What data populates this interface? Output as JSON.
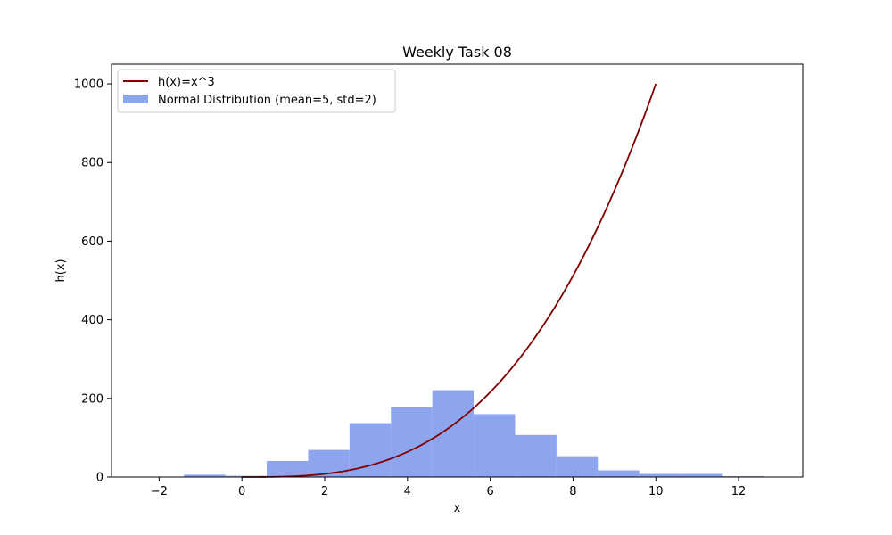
{
  "chart_data": {
    "type": "bar",
    "title": "Weekly Task 08",
    "xlabel": "x",
    "ylabel": "h(x)",
    "xlim": [
      -3.15,
      13.55
    ],
    "ylim": [
      0,
      1050
    ],
    "xticks": [
      -2,
      0,
      2,
      4,
      6,
      8,
      10,
      12
    ],
    "yticks": [
      0,
      200,
      400,
      600,
      800,
      1000
    ],
    "xtick_labels": [
      "−2",
      "0",
      "2",
      "4",
      "6",
      "8",
      "10",
      "12"
    ],
    "ytick_labels": [
      "0",
      "200",
      "400",
      "600",
      "800",
      "1000"
    ],
    "grid": false,
    "legend_position": "top-left",
    "series": [
      {
        "name": "h(x)=x^3",
        "type": "line",
        "color": "#800000",
        "function": "x^3",
        "x_range": [
          0,
          10
        ]
      },
      {
        "name": "Normal Distribution (mean=5, std=2)",
        "type": "histogram",
        "color": "#8da4ee",
        "bin_edges": [
          -1.4,
          -0.4,
          0.6,
          1.6,
          2.6,
          3.6,
          4.6,
          5.6,
          6.6,
          7.6,
          8.6,
          9.6,
          10.6,
          11.6,
          12.6
        ],
        "counts": [
          6,
          3,
          41,
          69,
          137,
          178,
          221,
          160,
          107,
          53,
          17,
          8,
          8,
          2
        ]
      }
    ]
  }
}
